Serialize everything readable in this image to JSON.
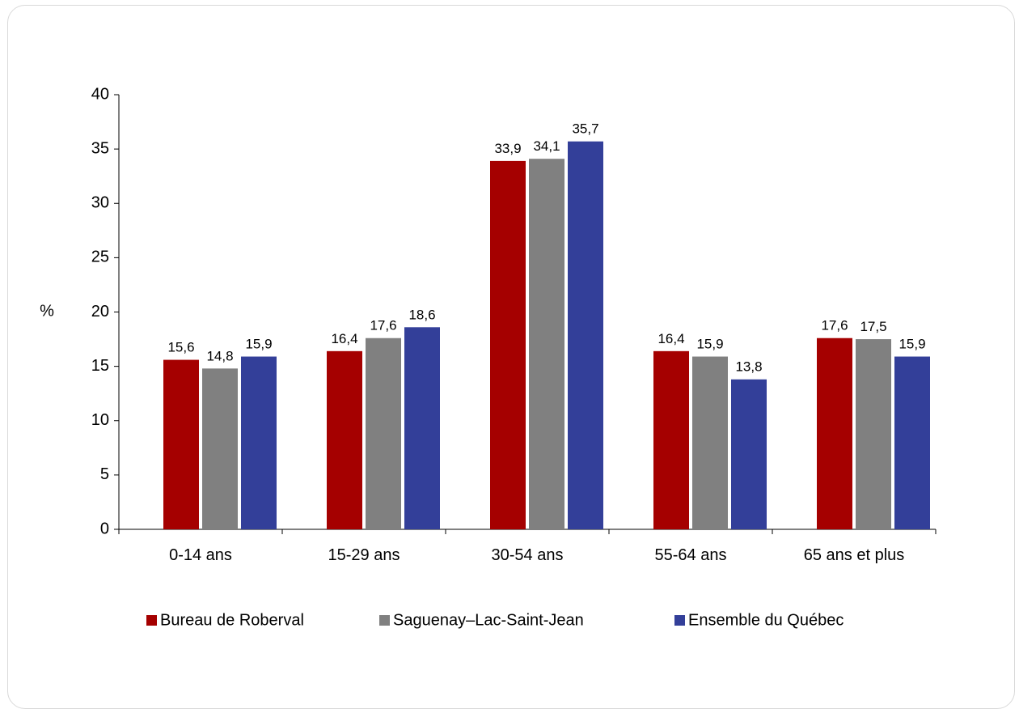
{
  "chart_data": {
    "type": "bar",
    "title": "",
    "xlabel": "",
    "ylabel": "%",
    "ylim": [
      0,
      40
    ],
    "yticks": [
      0,
      5,
      10,
      15,
      20,
      25,
      30,
      35,
      40
    ],
    "grid": false,
    "legend_position": "bottom",
    "categories": [
      "0-14 ans",
      "15-29 ans",
      "30-54 ans",
      "55-64 ans",
      "65 ans et plus"
    ],
    "series": [
      {
        "name": "Bureau de Roberval",
        "color": "#a50000",
        "values": [
          15.6,
          16.4,
          33.9,
          16.4,
          17.6
        ],
        "labels": [
          "15,6",
          "16,4",
          "33,9",
          "16,4",
          "17,6"
        ]
      },
      {
        "name": "Saguenay–Lac-Saint-Jean",
        "color": "#808080",
        "values": [
          14.8,
          17.6,
          34.1,
          15.9,
          17.5
        ],
        "labels": [
          "14,8",
          "17,6",
          "34,1",
          "15,9",
          "17,5"
        ]
      },
      {
        "name": "Ensemble du Québec",
        "color": "#333f99",
        "values": [
          15.9,
          18.6,
          35.7,
          13.8,
          15.9
        ],
        "labels": [
          "15,9",
          "18,6",
          "35,7",
          "13,8",
          "15,9"
        ]
      }
    ]
  }
}
